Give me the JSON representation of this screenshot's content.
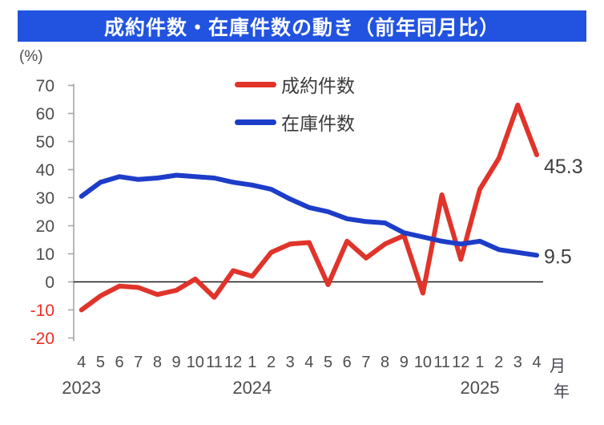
{
  "header": {
    "title": "成約件数・在庫件数の動き（前年同月比）",
    "bg_color": "#2153E0",
    "text_color": "#FFFFFF"
  },
  "unit_label": "(%)",
  "legend": {
    "items": [
      {
        "label": "成約件数",
        "color": "#E0342B"
      },
      {
        "label": "在庫件数",
        "color": "#1D3DC8"
      }
    ]
  },
  "x_axis": {
    "month_labels": [
      "4",
      "5",
      "6",
      "7",
      "8",
      "9",
      "10",
      "11",
      "12",
      "1",
      "2",
      "3",
      "4",
      "5",
      "6",
      "7",
      "8",
      "9",
      "10",
      "11",
      "12",
      "1",
      "2",
      "3",
      "4"
    ],
    "year_labels": [
      {
        "text": "2023",
        "index": 0
      },
      {
        "text": "2024",
        "index": 9
      },
      {
        "text": "2025",
        "index": 21
      }
    ],
    "month_suffix": "月",
    "year_suffix": "年",
    "label_color": "#4d4d4d"
  },
  "y_axis": {
    "ticks": [
      70,
      60,
      50,
      40,
      30,
      20,
      10,
      0,
      -10,
      -20
    ],
    "positive_color": "#4d4d4d",
    "negative_color": "#EE2E22",
    "axis_color": "#A6A6A6",
    "zero_line_color": "#1a1a1a"
  },
  "end_labels": [
    {
      "text": "45.3",
      "value": 45.3,
      "series": "成約件数"
    },
    {
      "text": "9.5",
      "value": 9.5,
      "series": "在庫件数"
    }
  ],
  "chart_data": {
    "type": "line",
    "title": "成約件数・在庫件数の動き（前年同月比）",
    "unit": "%",
    "ylim": [
      -20,
      70
    ],
    "grid": false,
    "legend_position": "top-center",
    "x": [
      "2023-04",
      "2023-05",
      "2023-06",
      "2023-07",
      "2023-08",
      "2023-09",
      "2023-10",
      "2023-11",
      "2023-12",
      "2024-01",
      "2024-02",
      "2024-03",
      "2024-04",
      "2024-05",
      "2024-06",
      "2024-07",
      "2024-08",
      "2024-09",
      "2024-10",
      "2024-11",
      "2024-12",
      "2025-01",
      "2025-02",
      "2025-03",
      "2025-04"
    ],
    "series": [
      {
        "name": "成約件数",
        "color": "#E0342B",
        "values": [
          -10,
          -5,
          -1.5,
          -2,
          -4.5,
          -3,
          1,
          -5.5,
          4,
          2,
          10.5,
          13.5,
          14,
          -1,
          14.5,
          8.5,
          13.5,
          16.5,
          -4,
          31,
          8,
          33,
          44,
          63,
          45.3
        ]
      },
      {
        "name": "在庫件数",
        "color": "#1D3DC8",
        "values": [
          30.5,
          35.5,
          37.5,
          36.5,
          37,
          38,
          37.5,
          37,
          35.5,
          34.5,
          33,
          29.5,
          26.5,
          25,
          22.5,
          21.5,
          21,
          17.5,
          16,
          14.5,
          13.5,
          14.5,
          11.5,
          10.5,
          9.5
        ]
      }
    ],
    "end_value_labels": {
      "成約件数": 45.3,
      "在庫件数": 9.5
    }
  }
}
